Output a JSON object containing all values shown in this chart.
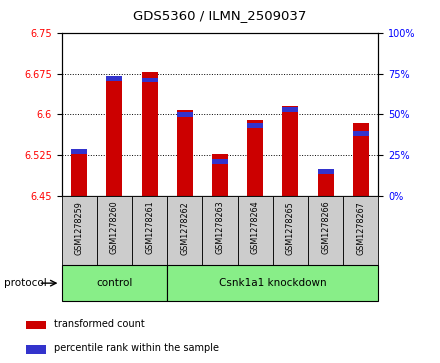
{
  "title": "GDS5360 / ILMN_2509037",
  "samples": [
    "GSM1278259",
    "GSM1278260",
    "GSM1278261",
    "GSM1278262",
    "GSM1278263",
    "GSM1278264",
    "GSM1278265",
    "GSM1278266",
    "GSM1278267"
  ],
  "transformed_counts": [
    6.535,
    6.67,
    6.678,
    6.608,
    6.527,
    6.59,
    6.615,
    6.49,
    6.585
  ],
  "percentile_ranks": [
    27,
    72,
    71,
    50,
    21,
    43,
    53,
    15,
    38
  ],
  "ylim_left": [
    6.45,
    6.75
  ],
  "ylim_right": [
    0,
    100
  ],
  "yticks_left": [
    6.45,
    6.525,
    6.6,
    6.675,
    6.75
  ],
  "yticks_right": [
    0,
    25,
    50,
    75,
    100
  ],
  "bar_color": "#cc0000",
  "blue_color": "#3333cc",
  "protocol_groups": [
    {
      "label": "control",
      "start": 0,
      "end": 3
    },
    {
      "label": "Csnk1a1 knockdown",
      "start": 3,
      "end": 9
    }
  ],
  "protocol_label": "protocol",
  "legend_items": [
    {
      "label": "transformed count",
      "color": "#cc0000"
    },
    {
      "label": "percentile rank within the sample",
      "color": "#3333cc"
    }
  ],
  "bar_width": 0.45,
  "background_color": "#ffffff",
  "plot_bg_color": "#ffffff",
  "tick_label_bg": "#cccccc",
  "group_bg_color": "#88ee88"
}
